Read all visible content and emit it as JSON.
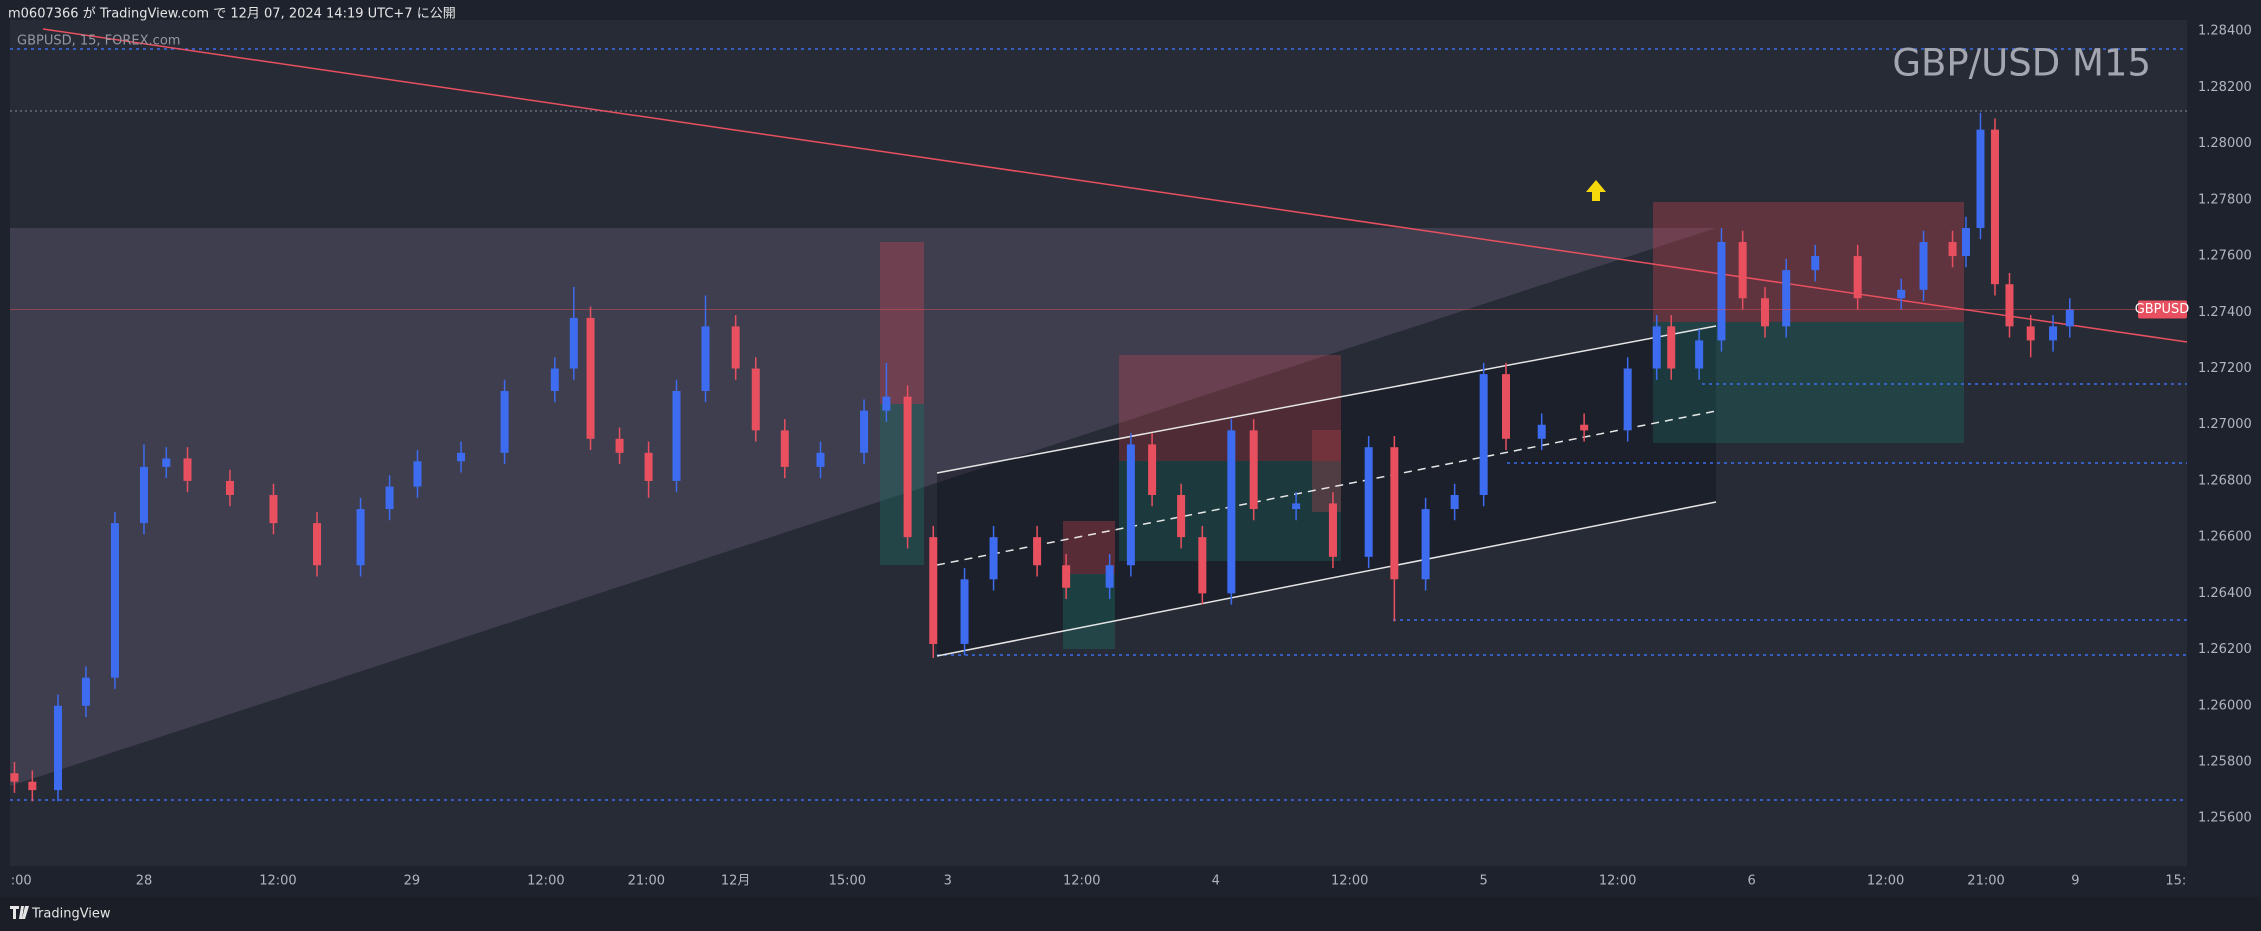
{
  "header": {
    "published": "m0607366 が TradingView.com で 12月 07, 2024 14:19 UTC+7 に公開",
    "brand": "TradingView"
  },
  "chart_data": {
    "type": "candlestick",
    "title": "GBP/USD M15",
    "symbol_label": "GBPUSD, 15, FOREX.com",
    "price_tag": "GBPUSD",
    "up_color": "#3d6cf0",
    "down_color": "#e8505f",
    "grid": false,
    "x": [
      0.4,
      2.0,
      4.3,
      6.8,
      9.4,
      12.0,
      14.0,
      15.9,
      19.7,
      23.6,
      27.5,
      31.4,
      34.0,
      36.5,
      40.4,
      44.3,
      48.8,
      50.5,
      52.0,
      54.6,
      57.2,
      59.7,
      62.3,
      65.0,
      66.8,
      69.4,
      72.6,
      76.5,
      78.5,
      80.4,
      82.7,
      85.5,
      88.1,
      92.0,
      94.6,
      98.5,
      100.4,
      102.3,
      104.9,
      106.8,
      109.4,
      111.4,
      115.2,
      118.5,
      121.7,
      124.0,
      126.8,
      129.4,
      132.0,
      134.0,
      137.2,
      141.0,
      144.9,
      147.5,
      148.8,
      151.3,
      153.3,
      155.2,
      157.2,
      159.1,
      161.7,
      165.5,
      169.4,
      171.4,
      174.0,
      175.2,
      176.5,
      177.8,
      179.1,
      181.0,
      183.0,
      184.5
    ],
    "open": [
      1.2576,
      1.2573,
      1.257,
      1.26,
      1.261,
      1.2665,
      1.2685,
      1.2688,
      1.268,
      1.2675,
      1.2665,
      1.265,
      1.267,
      1.2678,
      1.2687,
      1.269,
      1.2712,
      1.272,
      1.2738,
      1.2695,
      1.269,
      1.268,
      1.2712,
      1.2735,
      1.272,
      1.2698,
      1.2685,
      1.269,
      1.2705,
      1.271,
      1.266,
      1.2622,
      1.2645,
      1.266,
      1.265,
      1.2642,
      1.265,
      1.2693,
      1.2675,
      1.266,
      1.264,
      1.2698,
      1.267,
      1.2672,
      1.2653,
      1.2692,
      1.2645,
      1.267,
      1.2675,
      1.2718,
      1.2695,
      1.27,
      1.2698,
      1.272,
      1.2735,
      1.272,
      1.273,
      1.2765,
      1.2745,
      1.2735,
      1.2755,
      1.276,
      1.2745,
      1.2748,
      1.2765,
      1.276,
      1.277,
      1.2805,
      1.275,
      1.2735,
      1.273,
      1.2735
    ],
    "high": [
      1.258,
      1.2577,
      1.2604,
      1.2614,
      1.2669,
      1.2693,
      1.2692,
      1.2692,
      1.2684,
      1.2679,
      1.2669,
      1.2674,
      1.2682,
      1.2691,
      1.2694,
      1.2716,
      1.2724,
      1.2749,
      1.2742,
      1.2699,
      1.2694,
      1.2716,
      1.2746,
      1.2739,
      1.2724,
      1.2702,
      1.2694,
      1.2709,
      1.2722,
      1.2714,
      1.2664,
      1.2649,
      1.2664,
      1.2664,
      1.2654,
      1.2654,
      1.2697,
      1.2697,
      1.2679,
      1.2664,
      1.2702,
      1.2702,
      1.2676,
      1.2676,
      1.2696,
      1.2696,
      1.2674,
      1.2679,
      1.2722,
      1.2722,
      1.2704,
      1.2704,
      1.2724,
      1.2739,
      1.2739,
      1.2734,
      1.277,
      1.2769,
      1.2749,
      1.2759,
      1.2764,
      1.2764,
      1.2752,
      1.2769,
      1.2769,
      1.2774,
      1.2811,
      1.2809,
      1.2754,
      1.2739,
      1.2739,
      1.2745
    ],
    "low": [
      1.2569,
      1.2566,
      1.2566,
      1.2596,
      1.2606,
      1.2661,
      1.2681,
      1.2676,
      1.2671,
      1.2661,
      1.2646,
      1.2646,
      1.2666,
      1.2674,
      1.2683,
      1.2686,
      1.2708,
      1.2716,
      1.2691,
      1.2686,
      1.2674,
      1.2676,
      1.2708,
      1.2716,
      1.2694,
      1.2681,
      1.2681,
      1.2686,
      1.2701,
      1.2656,
      1.2617,
      1.2618,
      1.2641,
      1.2646,
      1.2638,
      1.2638,
      1.2646,
      1.2671,
      1.2656,
      1.2636,
      1.2636,
      1.2666,
      1.2666,
      1.2649,
      1.2649,
      1.263,
      1.2641,
      1.2666,
      1.2671,
      1.2691,
      1.2691,
      1.2694,
      1.2694,
      1.2716,
      1.2716,
      1.2716,
      1.2726,
      1.2741,
      1.2731,
      1.2731,
      1.2751,
      1.2741,
      1.2741,
      1.2744,
      1.2756,
      1.2756,
      1.2766,
      1.2746,
      1.2731,
      1.2724,
      1.2726,
      1.2731
    ],
    "close": [
      1.2573,
      1.257,
      1.26,
      1.261,
      1.2665,
      1.2685,
      1.2688,
      1.268,
      1.2675,
      1.2665,
      1.265,
      1.267,
      1.2678,
      1.2687,
      1.269,
      1.2712,
      1.272,
      1.2738,
      1.2695,
      1.269,
      1.268,
      1.2712,
      1.2735,
      1.272,
      1.2698,
      1.2685,
      1.269,
      1.2705,
      1.271,
      1.266,
      1.2622,
      1.2645,
      1.266,
      1.265,
      1.2642,
      1.265,
      1.2693,
      1.2675,
      1.266,
      1.264,
      1.2698,
      1.267,
      1.2672,
      1.2653,
      1.2692,
      1.2645,
      1.267,
      1.2675,
      1.2718,
      1.2695,
      1.27,
      1.2698,
      1.272,
      1.2735,
      1.272,
      1.273,
      1.2765,
      1.2745,
      1.2735,
      1.2755,
      1.276,
      1.2745,
      1.2748,
      1.2765,
      1.276,
      1.277,
      1.2805,
      1.275,
      1.2735,
      1.273,
      1.2735,
      1.2741
    ],
    "xlim": [
      0,
      195
    ],
    "ylim": [
      1.2543,
      1.2844
    ],
    "xticks": [
      {
        "value": 1,
        "label": ":00"
      },
      {
        "value": 12,
        "label": "28"
      },
      {
        "value": 24,
        "label": "12:00"
      },
      {
        "value": 36,
        "label": "29"
      },
      {
        "value": 48,
        "label": "12:00"
      },
      {
        "value": 57,
        "label": "21:00"
      },
      {
        "value": 65,
        "label": "12月"
      },
      {
        "value": 75,
        "label": "15:00"
      },
      {
        "value": 84,
        "label": "3"
      },
      {
        "value": 96,
        "label": "12:00"
      },
      {
        "value": 108,
        "label": "4"
      },
      {
        "value": 120,
        "label": "12:00"
      },
      {
        "value": 132,
        "label": "5"
      },
      {
        "value": 144,
        "label": "12:00"
      },
      {
        "value": 156,
        "label": "6"
      },
      {
        "value": 168,
        "label": "12:00"
      },
      {
        "value": 177,
        "label": "21:00"
      },
      {
        "value": 185,
        "label": "9"
      },
      {
        "value": 194,
        "label": "15:"
      }
    ],
    "yticks": [
      {
        "value": 1.256,
        "label": "1.25600"
      },
      {
        "value": 1.258,
        "label": "1.25800"
      },
      {
        "value": 1.26,
        "label": "1.26000"
      },
      {
        "value": 1.262,
        "label": "1.26200"
      },
      {
        "value": 1.264,
        "label": "1.26400"
      },
      {
        "value": 1.266,
        "label": "1.26600"
      },
      {
        "value": 1.268,
        "label": "1.26800"
      },
      {
        "value": 1.27,
        "label": "1.27000"
      },
      {
        "value": 1.272,
        "label": "1.27200"
      },
      {
        "value": 1.274,
        "label": "1.27400"
      },
      {
        "value": 1.276,
        "label": "1.27600"
      },
      {
        "value": 1.278,
        "label": "1.27800"
      },
      {
        "value": 1.28,
        "label": "1.28000"
      },
      {
        "value": 1.282,
        "label": "1.28200"
      },
      {
        "value": 1.284,
        "label": "1.28400"
      }
    ]
  }
}
